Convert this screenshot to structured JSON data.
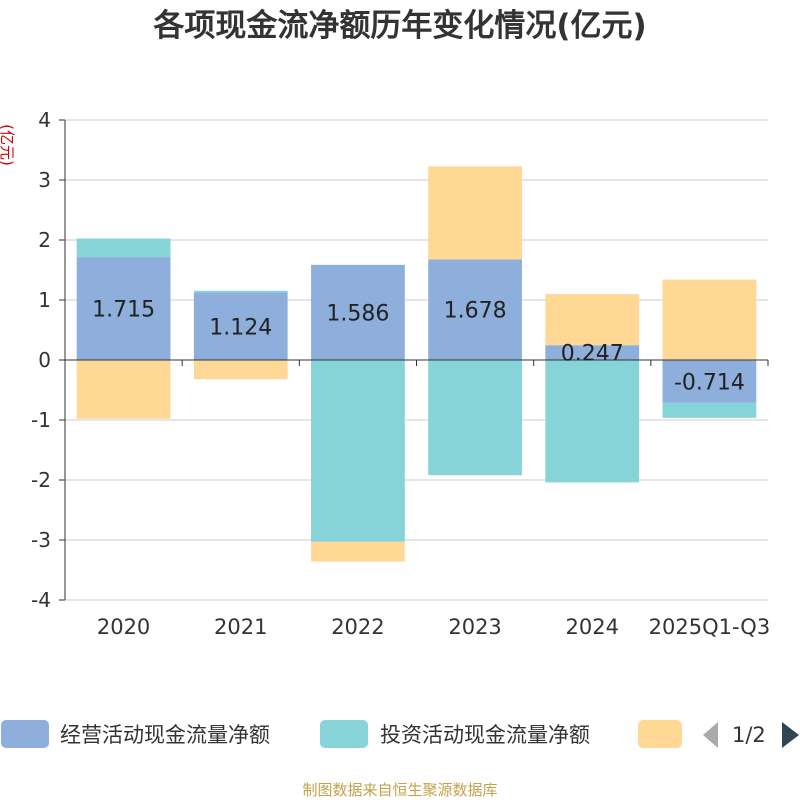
{
  "chart_data": {
    "type": "bar",
    "stacked": true,
    "title": "各项现金流净额历年变化情况(亿元)",
    "unit_label": "(亿元)",
    "categories": [
      "2020",
      "2021",
      "2022",
      "2023",
      "2024",
      "2025Q1-Q3"
    ],
    "ylim": [
      -4,
      4
    ],
    "yticks": [
      "4",
      "3",
      "2",
      "1",
      "0",
      "-1",
      "-2",
      "-3",
      "-4"
    ],
    "grid": true,
    "legend_position": "bottom",
    "series": [
      {
        "name": "经营活动现金流量净额",
        "color": "#8eaedb",
        "values": [
          1.715,
          1.124,
          1.586,
          1.678,
          0.247,
          -0.714
        ],
        "labels": [
          "1.715",
          "1.124",
          "1.586",
          "1.678",
          "0.247",
          "-0.714"
        ]
      },
      {
        "name": "投资活动现金流量净额",
        "color": "#87d4d8",
        "values": [
          0.31,
          0.03,
          -3.03,
          -1.92,
          -2.04,
          -0.25
        ]
      },
      {
        "color": "#ffd896",
        "values": [
          -0.98,
          -0.32,
          -0.33,
          1.55,
          0.85,
          1.34
        ]
      }
    ]
  },
  "legend": {
    "page": "1/2",
    "prev_icon": "triangle-left-icon",
    "next_icon": "triangle-right-icon"
  },
  "source": "制图数据来自恒生聚源数据库"
}
